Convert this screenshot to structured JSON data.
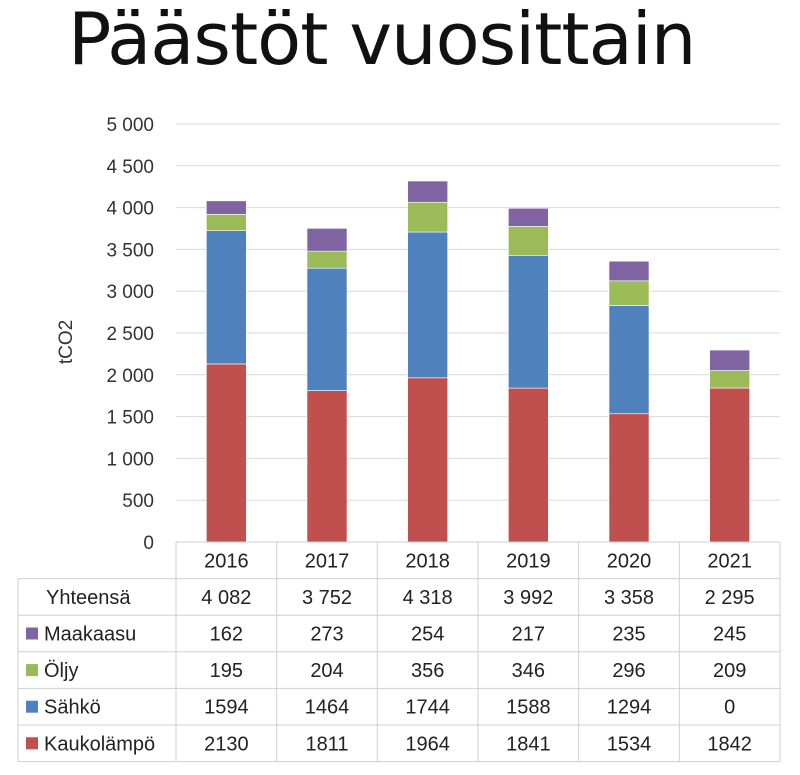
{
  "chart_data": {
    "type": "bar",
    "stacked": true,
    "title": "Päästöt vuosittain",
    "ylabel": "tCO2",
    "ylim": [
      0,
      5000
    ],
    "yticks": [
      "0",
      "500",
      "1 000",
      "1 500",
      "2 000",
      "2 500",
      "3 000",
      "3 500",
      "4 000",
      "4 500",
      "5 000"
    ],
    "grid": true,
    "categories": [
      "2016",
      "2017",
      "2018",
      "2019",
      "2020",
      "2021"
    ],
    "series": [
      {
        "name": "Kaukolämpö",
        "color": "#c0504d",
        "values": [
          2130,
          1811,
          1964,
          1841,
          1534,
          1842
        ]
      },
      {
        "name": "Sähkö",
        "color": "#4f81bd",
        "values": [
          1594,
          1464,
          1744,
          1588,
          1294,
          0
        ]
      },
      {
        "name": "Öljy",
        "color": "#9bbb59",
        "values": [
          195,
          204,
          356,
          346,
          296,
          209
        ]
      },
      {
        "name": "Maakaasu",
        "color": "#8064a2",
        "values": [
          162,
          273,
          254,
          217,
          235,
          245
        ]
      }
    ],
    "table": {
      "total_label": "Yhteensä",
      "totals": [
        "4 082",
        "3 752",
        "4 318",
        "3 992",
        "3 358",
        "2 295"
      ],
      "row_order": [
        "Maakaasu",
        "Öljy",
        "Sähkö",
        "Kaukolämpö"
      ]
    }
  }
}
